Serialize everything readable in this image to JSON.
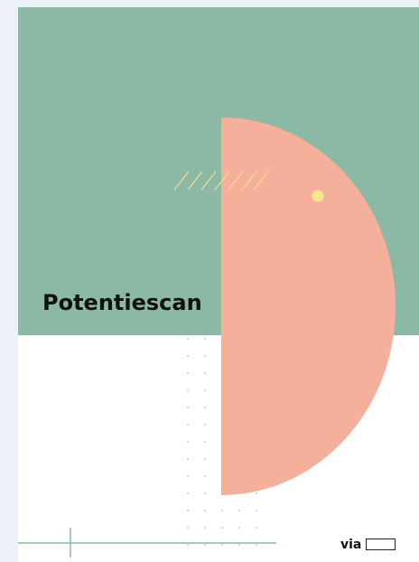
{
  "cover": {
    "title": "Potentiescan",
    "via": "via"
  }
}
